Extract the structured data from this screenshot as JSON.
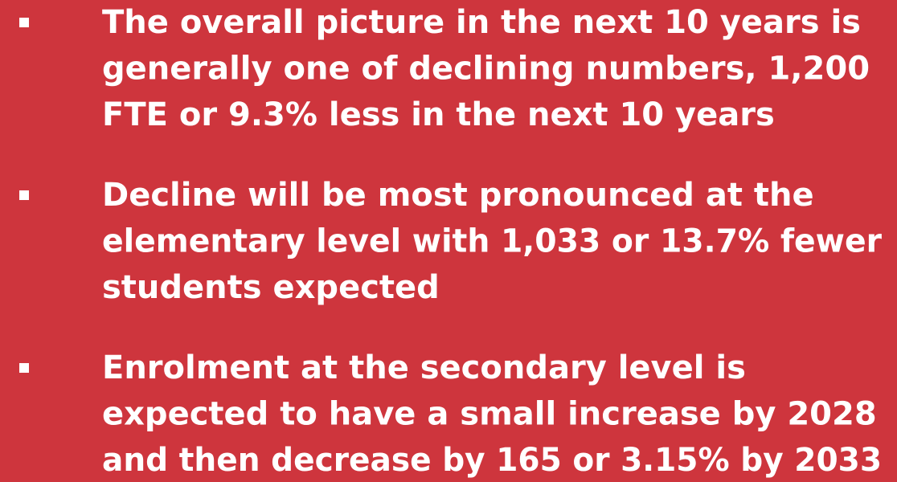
{
  "bullets": [
    {
      "lines": [
        "The overall picture in the next 10 years is",
        "generally one of declining numbers, 1,200",
        "FTE or 9.3% less in the next 10 years"
      ]
    },
    {
      "lines": [
        "Decline will be most pronounced at the",
        "elementary level with 1,033 or 13.7% fewer",
        "students expected"
      ]
    },
    {
      "lines": [
        "Enrolment at the secondary level is",
        "expected to have a small increase by 2028",
        "and then decrease by 165 or 3.15% by 2033"
      ]
    }
  ]
}
